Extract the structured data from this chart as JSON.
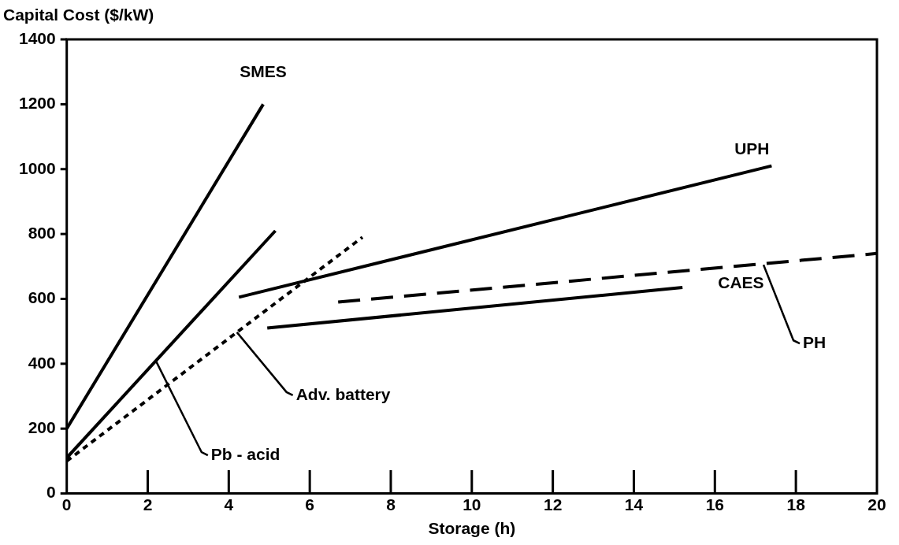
{
  "chart_data": {
    "type": "line",
    "xlabel": "Storage (h)",
    "ylabel": "Capital Cost ($/kW)",
    "xlim": [
      0,
      20
    ],
    "xticks": [
      0,
      2,
      4,
      6,
      8,
      10,
      12,
      14,
      16,
      18,
      20
    ],
    "ylim": [
      0,
      1400
    ],
    "yticks": [
      0,
      200,
      400,
      600,
      800,
      1000,
      1200,
      1400
    ],
    "grid": false,
    "legend": false,
    "marker": "none",
    "series": [
      {
        "color": "#000000",
        "line_style": "solid",
        "x": [
          0,
          4.85
        ],
        "values": [
          200,
          1200
        ]
      },
      {
        "color": "#000000",
        "line_style": "solid",
        "x": [
          0,
          5.15
        ],
        "values": [
          110,
          810
        ]
      },
      {
        "color": "#000000",
        "line_style": "dotted",
        "x": [
          0,
          7.3
        ],
        "values": [
          100,
          790
        ]
      },
      {
        "color": "#000000",
        "line_style": "solid",
        "x": [
          4.25,
          17.4
        ],
        "values": [
          605,
          1010
        ]
      },
      {
        "color": "#000000",
        "line_style": "solid",
        "x": [
          4.95,
          15.2
        ],
        "values": [
          510,
          635
        ]
      },
      {
        "color": "#000000",
        "line_style": "dashed",
        "x": [
          6.7,
          20
        ],
        "values": [
          590,
          740
        ]
      }
    ],
    "annotations": [
      {
        "text": "SMES",
        "x": 4.85,
        "y": 1200
      },
      {
        "text": "Pb - acid",
        "x": 2.2,
        "y": 409
      },
      {
        "text": "Adv. battery",
        "x": 4.2,
        "y": 497
      },
      {
        "text": "UPH",
        "x": 17.4,
        "y": 1010
      },
      {
        "text": "CAES",
        "x": 15.2,
        "y": 635
      },
      {
        "text": "PH",
        "x": 17.2,
        "y": 705
      }
    ]
  }
}
